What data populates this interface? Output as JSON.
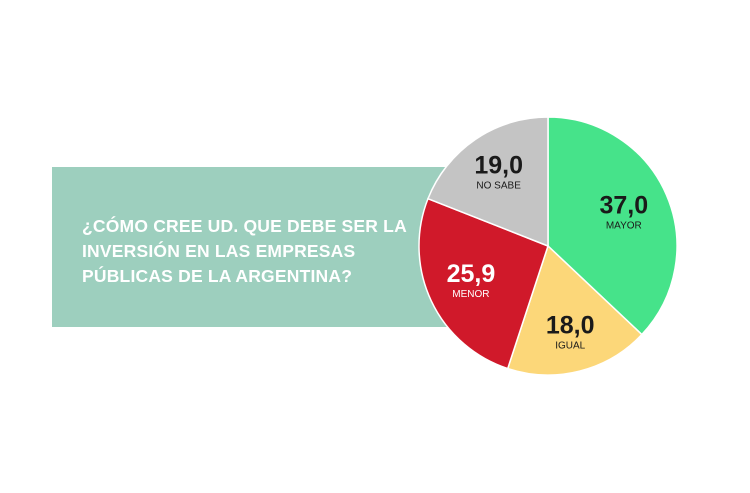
{
  "question": "¿CÓMO CREE UD. QUE DEBE SER LA INVERSIÓN EN LAS EMPRESAS PÚBLICAS DE LA ARGENTINA?",
  "colors": {
    "panel": "#9dcfbe",
    "panel_text": "#ffffff"
  },
  "chart_data": {
    "type": "pie",
    "title": "",
    "slices": [
      {
        "category": "MAYOR",
        "value": 37.0,
        "display": "37,0",
        "color": "#46e38a",
        "text_color": "#1a1a1a"
      },
      {
        "category": "IGUAL",
        "value": 18.0,
        "display": "18,0",
        "color": "#fcd779",
        "text_color": "#1a1a1a"
      },
      {
        "category": "MENOR",
        "value": 25.9,
        "display": "25,9",
        "color": "#d0192a",
        "text_color": "#ffffff"
      },
      {
        "category": "NO SABE",
        "value": 19.0,
        "display": "19,0",
        "color": "#c4c4c4",
        "text_color": "#1a1a1a"
      }
    ],
    "start_angle": "12 o'clock",
    "direction": "clockwise"
  }
}
